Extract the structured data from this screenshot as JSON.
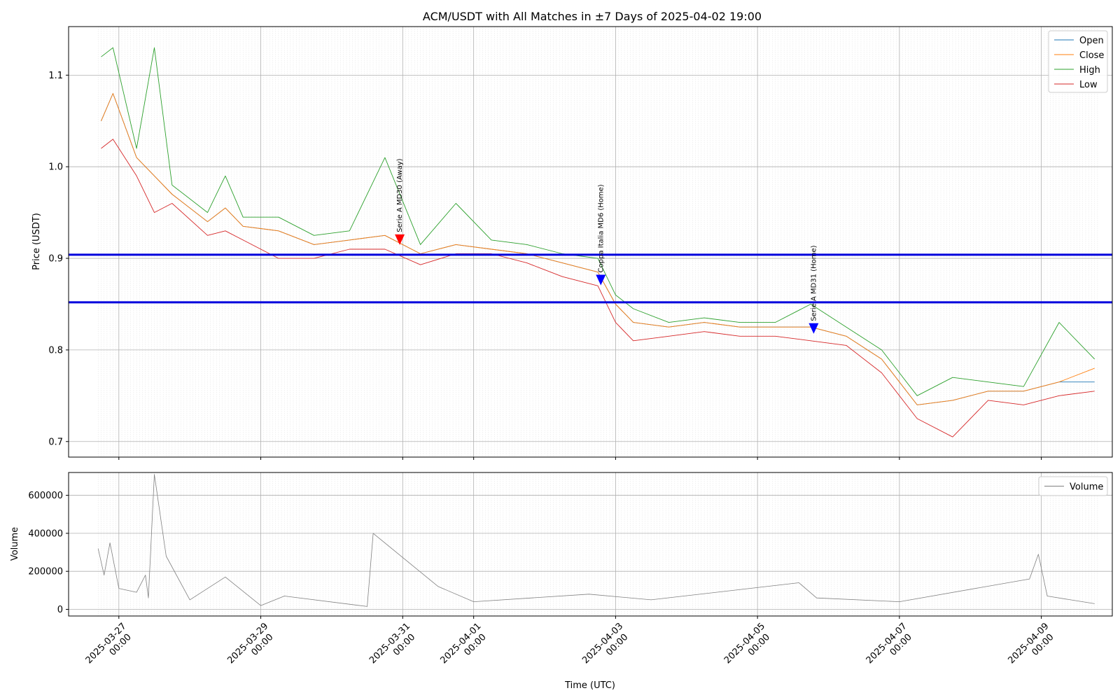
{
  "chart_data": [
    {
      "type": "line",
      "title": "ACM/USDT with All Matches in ±7 Days of 2025-04-02 19:00",
      "ylabel": "Price (USDT)",
      "xlabel": "",
      "ylim": [
        0.683,
        1.153
      ],
      "xlim": [
        "2025-03-26 07:00",
        "2025-04-10 00:00"
      ],
      "yticks": [
        0.7,
        0.8,
        0.9,
        1.0,
        1.1
      ],
      "ytick_labels": [
        "0.7",
        "0.8",
        "0.9",
        "1.0",
        "1.1"
      ],
      "grid": true,
      "legend": "top-right",
      "legend_entries": [
        "Open",
        "Close",
        "High",
        "Low"
      ],
      "colors": {
        "Open": "#1f77b4",
        "Close": "#ff7f0e",
        "High": "#2ca02c",
        "Low": "#d62728",
        "hline": "#0000dd"
      },
      "series": [
        {
          "name": "Open",
          "x": [
            "2025-03-26 18:00",
            "2025-03-26 22:00",
            "2025-03-27 06:00",
            "2025-03-27 12:00",
            "2025-03-27 18:00",
            "2025-03-28 06:00",
            "2025-03-28 12:00",
            "2025-03-28 18:00",
            "2025-03-29 06:00",
            "2025-03-29 18:00",
            "2025-03-30 06:00",
            "2025-03-30 18:00",
            "2025-03-31 06:00",
            "2025-03-31 18:00",
            "2025-04-01 06:00",
            "2025-04-01 18:00",
            "2025-04-02 06:00",
            "2025-04-02 18:00",
            "2025-04-03 00:00",
            "2025-04-03 06:00",
            "2025-04-03 18:00",
            "2025-04-04 06:00",
            "2025-04-04 18:00",
            "2025-04-05 06:00",
            "2025-04-05 18:00",
            "2025-04-06 06:00",
            "2025-04-06 18:00",
            "2025-04-07 06:00",
            "2025-04-07 18:00",
            "2025-04-08 06:00",
            "2025-04-08 18:00",
            "2025-04-09 06:00",
            "2025-04-09 18:00"
          ],
          "values": [
            1.05,
            1.08,
            1.01,
            0.99,
            0.97,
            0.94,
            0.955,
            0.935,
            0.93,
            0.915,
            0.92,
            0.925,
            0.905,
            0.915,
            0.91,
            0.905,
            0.895,
            0.885,
            0.85,
            0.83,
            0.825,
            0.83,
            0.825,
            0.825,
            0.825,
            0.815,
            0.79,
            0.74,
            0.745,
            0.755,
            0.755,
            0.765,
            0.765
          ]
        },
        {
          "name": "Close",
          "x": [
            "2025-03-26 18:00",
            "2025-03-26 22:00",
            "2025-03-27 06:00",
            "2025-03-27 12:00",
            "2025-03-27 18:00",
            "2025-03-28 06:00",
            "2025-03-28 12:00",
            "2025-03-28 18:00",
            "2025-03-29 06:00",
            "2025-03-29 18:00",
            "2025-03-30 06:00",
            "2025-03-30 18:00",
            "2025-03-31 06:00",
            "2025-03-31 18:00",
            "2025-04-01 06:00",
            "2025-04-01 18:00",
            "2025-04-02 06:00",
            "2025-04-02 18:00",
            "2025-04-03 00:00",
            "2025-04-03 06:00",
            "2025-04-03 18:00",
            "2025-04-04 06:00",
            "2025-04-04 18:00",
            "2025-04-05 06:00",
            "2025-04-05 18:00",
            "2025-04-06 06:00",
            "2025-04-06 18:00",
            "2025-04-07 06:00",
            "2025-04-07 18:00",
            "2025-04-08 06:00",
            "2025-04-08 18:00",
            "2025-04-09 06:00",
            "2025-04-09 18:00"
          ],
          "values": [
            1.05,
            1.08,
            1.01,
            0.99,
            0.97,
            0.94,
            0.955,
            0.935,
            0.93,
            0.915,
            0.92,
            0.925,
            0.905,
            0.915,
            0.91,
            0.905,
            0.895,
            0.885,
            0.85,
            0.83,
            0.825,
            0.83,
            0.825,
            0.825,
            0.825,
            0.815,
            0.79,
            0.74,
            0.745,
            0.755,
            0.755,
            0.765,
            0.78
          ]
        },
        {
          "name": "High",
          "x": [
            "2025-03-26 18:00",
            "2025-03-26 22:00",
            "2025-03-27 06:00",
            "2025-03-27 12:00",
            "2025-03-27 18:00",
            "2025-03-28 06:00",
            "2025-03-28 12:00",
            "2025-03-28 18:00",
            "2025-03-29 06:00",
            "2025-03-29 18:00",
            "2025-03-30 06:00",
            "2025-03-30 18:00",
            "2025-03-31 06:00",
            "2025-03-31 18:00",
            "2025-04-01 06:00",
            "2025-04-01 18:00",
            "2025-04-02 06:00",
            "2025-04-02 18:00",
            "2025-04-03 00:00",
            "2025-04-03 06:00",
            "2025-04-03 18:00",
            "2025-04-04 06:00",
            "2025-04-04 18:00",
            "2025-04-05 06:00",
            "2025-04-05 18:00",
            "2025-04-06 06:00",
            "2025-04-06 18:00",
            "2025-04-07 06:00",
            "2025-04-07 18:00",
            "2025-04-08 06:00",
            "2025-04-08 18:00",
            "2025-04-09 06:00",
            "2025-04-09 18:00"
          ],
          "values": [
            1.12,
            1.13,
            1.02,
            1.13,
            0.98,
            0.95,
            0.99,
            0.945,
            0.945,
            0.925,
            0.93,
            1.01,
            0.915,
            0.96,
            0.92,
            0.915,
            0.905,
            0.9,
            0.86,
            0.845,
            0.83,
            0.835,
            0.83,
            0.83,
            0.85,
            0.825,
            0.8,
            0.75,
            0.77,
            0.765,
            0.76,
            0.83,
            0.79
          ]
        },
        {
          "name": "Low",
          "x": [
            "2025-03-26 18:00",
            "2025-03-26 22:00",
            "2025-03-27 06:00",
            "2025-03-27 12:00",
            "2025-03-27 18:00",
            "2025-03-28 06:00",
            "2025-03-28 12:00",
            "2025-03-28 18:00",
            "2025-03-29 06:00",
            "2025-03-29 18:00",
            "2025-03-30 06:00",
            "2025-03-30 18:00",
            "2025-03-31 06:00",
            "2025-03-31 18:00",
            "2025-04-01 06:00",
            "2025-04-01 18:00",
            "2025-04-02 06:00",
            "2025-04-02 18:00",
            "2025-04-03 00:00",
            "2025-04-03 06:00",
            "2025-04-03 18:00",
            "2025-04-04 06:00",
            "2025-04-04 18:00",
            "2025-04-05 06:00",
            "2025-04-05 18:00",
            "2025-04-06 06:00",
            "2025-04-06 18:00",
            "2025-04-07 06:00",
            "2025-04-07 18:00",
            "2025-04-08 06:00",
            "2025-04-08 18:00",
            "2025-04-09 06:00",
            "2025-04-09 18:00"
          ],
          "values": [
            1.02,
            1.03,
            0.99,
            0.95,
            0.96,
            0.925,
            0.93,
            0.92,
            0.9,
            0.9,
            0.91,
            0.91,
            0.893,
            0.905,
            0.905,
            0.895,
            0.88,
            0.87,
            0.83,
            0.81,
            0.815,
            0.82,
            0.815,
            0.815,
            0.81,
            0.805,
            0.775,
            0.725,
            0.705,
            0.745,
            0.74,
            0.75,
            0.755
          ]
        }
      ],
      "hlines": [
        0.904,
        0.852
      ],
      "markers": [
        {
          "x": "2025-03-30 23:00",
          "y": 0.92,
          "color": "#ff0000",
          "label": "Serie A MD30 (Away)"
        },
        {
          "x": "2025-04-02 19:00",
          "y": 0.876,
          "color": "#0000ff",
          "label": "Coppa Italia MD6 (Home)"
        },
        {
          "x": "2025-04-05 19:00",
          "y": 0.823,
          "color": "#0000ff",
          "label": "Serie A MD31 (Home)"
        }
      ]
    },
    {
      "type": "line",
      "ylabel": "Volume",
      "xlabel": "Time (UTC)",
      "ylim": [
        -35000,
        720000
      ],
      "yticks": [
        0,
        200000,
        400000,
        600000
      ],
      "ytick_labels": [
        "0",
        "200000",
        "400000",
        "600000"
      ],
      "xticks": [
        "2025-03-27 00:00",
        "2025-03-29 00:00",
        "2025-03-31 00:00",
        "2025-04-01 00:00",
        "2025-04-03 00:00",
        "2025-04-05 00:00",
        "2025-04-07 00:00",
        "2025-04-09 00:00"
      ],
      "xtick_labels": [
        [
          "2025-03-27",
          "00:00"
        ],
        [
          "2025-03-29",
          "00:00"
        ],
        [
          "2025-03-31",
          "00:00"
        ],
        [
          "2025-04-01",
          "00:00"
        ],
        [
          "2025-04-03",
          "00:00"
        ],
        [
          "2025-04-05",
          "00:00"
        ],
        [
          "2025-04-07",
          "00:00"
        ],
        [
          "2025-04-09",
          "00:00"
        ]
      ],
      "grid": true,
      "legend": "top-right",
      "legend_entries": [
        "Volume"
      ],
      "colors": {
        "Volume": "#808080"
      },
      "series": [
        {
          "name": "Volume",
          "x": [
            "2025-03-26 17:00",
            "2025-03-26 19:00",
            "2025-03-26 21:00",
            "2025-03-27 00:00",
            "2025-03-27 06:00",
            "2025-03-27 09:00",
            "2025-03-27 10:00",
            "2025-03-27 12:00",
            "2025-03-27 16:00",
            "2025-03-28 00:00",
            "2025-03-28 12:00",
            "2025-03-29 00:00",
            "2025-03-29 08:00",
            "2025-03-30 12:00",
            "2025-03-30 14:00",
            "2025-03-31 12:00",
            "2025-04-01 00:00",
            "2025-04-02 15:00",
            "2025-04-03 12:00",
            "2025-04-05 14:00",
            "2025-04-05 20:00",
            "2025-04-07 00:00",
            "2025-04-08 20:00",
            "2025-04-08 23:00",
            "2025-04-09 02:00",
            "2025-04-09 18:00"
          ],
          "values": [
            320000,
            180000,
            350000,
            110000,
            90000,
            180000,
            60000,
            710000,
            280000,
            50000,
            170000,
            20000,
            70000,
            15000,
            400000,
            120000,
            40000,
            80000,
            50000,
            140000,
            60000,
            40000,
            160000,
            290000,
            70000,
            30000
          ]
        }
      ]
    }
  ]
}
